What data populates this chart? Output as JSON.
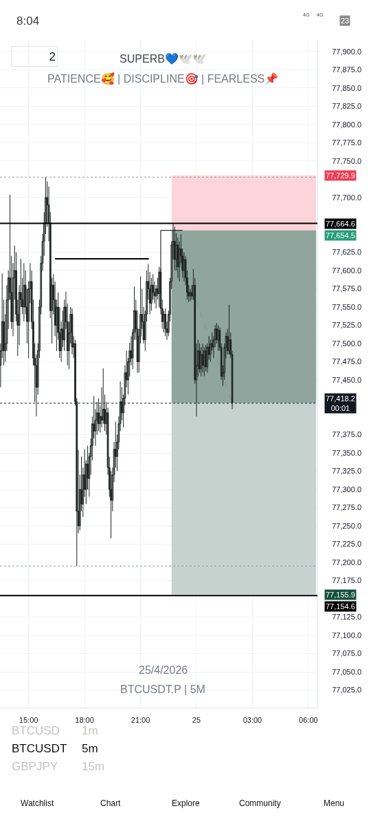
{
  "chart_data": {
    "type": "candlestick",
    "title": "SUPERB💙🕊️🕊️",
    "subtitle": "PATIENCE🥰 | DISCIPLINE🎯 | FEARLESS📌",
    "color": "#1c2320",
    "x": [
      "2026-04-24T13:30",
      "2026-04-24T13:35",
      "2026-04-24T13:40",
      "2026-04-24T13:45",
      "2026-04-24T13:50",
      "2026-04-24T13:55",
      "2026-04-24T14:00",
      "2026-04-24T14:05",
      "2026-04-24T14:10",
      "2026-04-24T14:15",
      "2026-04-24T14:20",
      "2026-04-24T14:25",
      "2026-04-24T14:30",
      "2026-04-24T14:35",
      "2026-04-24T14:40",
      "2026-04-24T14:45",
      "2026-04-24T14:50",
      "2026-04-24T14:55",
      "2026-04-24T15:00",
      "2026-04-24T15:05",
      "2026-04-24T15:10",
      "2026-04-24T15:15",
      "2026-04-24T15:20",
      "2026-04-24T15:25",
      "2026-04-24T15:30",
      "2026-04-24T15:35",
      "2026-04-24T15:40",
      "2026-04-24T15:45",
      "2026-04-24T15:50",
      "2026-04-24T15:55",
      "2026-04-24T16:00",
      "2026-04-24T16:05",
      "2026-04-24T16:10",
      "2026-04-24T16:15",
      "2026-04-24T16:20",
      "2026-04-24T16:25",
      "2026-04-24T16:30",
      "2026-04-24T16:35",
      "2026-04-24T16:40",
      "2026-04-24T16:45",
      "2026-04-24T16:50",
      "2026-04-24T16:55",
      "2026-04-24T17:00",
      "2026-04-24T17:05",
      "2026-04-24T17:10",
      "2026-04-24T17:15",
      "2026-04-24T17:20",
      "2026-04-24T17:25",
      "2026-04-24T17:30",
      "2026-04-24T17:35",
      "2026-04-24T17:40",
      "2026-04-24T17:45",
      "2026-04-24T17:50",
      "2026-04-24T17:55",
      "2026-04-24T18:00",
      "2026-04-24T18:05",
      "2026-04-24T18:10",
      "2026-04-24T18:15",
      "2026-04-24T18:20",
      "2026-04-24T18:25",
      "2026-04-24T18:30",
      "2026-04-24T18:35",
      "2026-04-24T18:40",
      "2026-04-24T18:45",
      "2026-04-24T18:50",
      "2026-04-24T18:55",
      "2026-04-24T19:00",
      "2026-04-24T19:05",
      "2026-04-24T19:10",
      "2026-04-24T19:15",
      "2026-04-24T19:20",
      "2026-04-24T19:25",
      "2026-04-24T19:30",
      "2026-04-24T19:35",
      "2026-04-24T19:40",
      "2026-04-24T19:45",
      "2026-04-24T19:50",
      "2026-04-24T19:55",
      "2026-04-24T20:00",
      "2026-04-24T20:05",
      "2026-04-24T20:10",
      "2026-04-24T20:15",
      "2026-04-24T20:20",
      "2026-04-24T20:25",
      "2026-04-24T20:30",
      "2026-04-24T20:35",
      "2026-04-24T20:40",
      "2026-04-24T20:45",
      "2026-04-24T20:50",
      "2026-04-24T20:55",
      "2026-04-24T21:00",
      "2026-04-24T21:05",
      "2026-04-24T21:10",
      "2026-04-24T21:15",
      "2026-04-24T21:20",
      "2026-04-24T21:25",
      "2026-04-24T21:30",
      "2026-04-24T21:35",
      "2026-04-24T21:40",
      "2026-04-24T21:45",
      "2026-04-24T21:50",
      "2026-04-24T21:55",
      "2026-04-24T22:00",
      "2026-04-24T22:05",
      "2026-04-24T22:10",
      "2026-04-24T22:15",
      "2026-04-24T22:20",
      "2026-04-24T22:25",
      "2026-04-24T22:30",
      "2026-04-24T22:35",
      "2026-04-24T22:40",
      "2026-04-24T22:45",
      "2026-04-24T22:50",
      "2026-04-24T22:55",
      "2026-04-24T23:00",
      "2026-04-24T23:05",
      "2026-04-24T23:10",
      "2026-04-24T23:15",
      "2026-04-24T23:20",
      "2026-04-24T23:25",
      "2026-04-24T23:30",
      "2026-04-24T23:35",
      "2026-04-24T23:40",
      "2026-04-24T23:45",
      "2026-04-24T23:50",
      "2026-04-24T23:55",
      "2026-04-25T00:00",
      "2026-04-25T00:05",
      "2026-04-25T00:10",
      "2026-04-25T00:15",
      "2026-04-25T00:20",
      "2026-04-25T00:25",
      "2026-04-25T00:30",
      "2026-04-25T00:35",
      "2026-04-25T00:40",
      "2026-04-25T00:45",
      "2026-04-25T00:50",
      "2026-04-25T00:55",
      "2026-04-25T01:00",
      "2026-04-25T01:05",
      "2026-04-25T01:10",
      "2026-04-25T01:15",
      "2026-04-25T01:20",
      "2026-04-25T01:25",
      "2026-04-25T01:30",
      "2026-04-25T01:35",
      "2026-04-25T01:40",
      "2026-04-25T01:45",
      "2026-04-25T01:50",
      "2026-04-25T01:55"
    ],
    "ohlc": [
      [
        77470,
        77500,
        77440,
        77490
      ],
      [
        77490,
        77596,
        77480,
        77530
      ],
      [
        77530,
        77560,
        77470,
        77490
      ],
      [
        77490,
        77540,
        77475,
        77500
      ],
      [
        77500,
        77580,
        77490,
        77560
      ],
      [
        77560,
        77600,
        77520,
        77590
      ],
      [
        77590,
        77704,
        77560,
        77570
      ],
      [
        77570,
        77620,
        77520,
        77530
      ],
      [
        77530,
        77610,
        77510,
        77590
      ],
      [
        77590,
        77634,
        77560,
        77600
      ],
      [
        77600,
        77625,
        77530,
        77540
      ],
      [
        77540,
        77560,
        77483,
        77525
      ],
      [
        77525,
        77580,
        77498,
        77570
      ],
      [
        77570,
        77616,
        77550,
        77560
      ],
      [
        77560,
        77590,
        77540,
        77550
      ],
      [
        77550,
        77610,
        77530,
        77580
      ],
      [
        77580,
        77600,
        77540,
        77550
      ],
      [
        77550,
        77575,
        77500,
        77530
      ],
      [
        77530,
        77585,
        77480,
        77575
      ],
      [
        77575,
        77610,
        77555,
        77585
      ],
      [
        77585,
        77600,
        77520,
        77530
      ],
      [
        77530,
        77560,
        77470,
        77480
      ],
      [
        77480,
        77500,
        77420,
        77470
      ],
      [
        77470,
        77485,
        77400,
        77440
      ],
      [
        77440,
        77500,
        77430,
        77490
      ],
      [
        77490,
        77560,
        77480,
        77550
      ],
      [
        77550,
        77620,
        77540,
        77610
      ],
      [
        77610,
        77650,
        77600,
        77640
      ],
      [
        77640,
        77680,
        77620,
        77665
      ],
      [
        77665,
        77728,
        77650,
        77700
      ],
      [
        77700,
        77722,
        77660,
        77690
      ],
      [
        77690,
        77715,
        77640,
        77665
      ],
      [
        77665,
        77680,
        77535,
        77545
      ],
      [
        77545,
        77590,
        77500,
        77580
      ],
      [
        77580,
        77595,
        77540,
        77560
      ],
      [
        77560,
        77585,
        77510,
        77525
      ],
      [
        77525,
        77560,
        77490,
        77550
      ],
      [
        77550,
        77570,
        77505,
        77515
      ],
      [
        77515,
        77550,
        77480,
        77490
      ],
      [
        77490,
        77530,
        77475,
        77520
      ],
      [
        77520,
        77545,
        77495,
        77505
      ],
      [
        77505,
        77560,
        77490,
        77550
      ],
      [
        77550,
        77571,
        77520,
        77530
      ],
      [
        77530,
        77555,
        77470,
        77490
      ],
      [
        77490,
        77530,
        77465,
        77515
      ],
      [
        77515,
        77550,
        77500,
        77540
      ],
      [
        77540,
        77548,
        77485,
        77495
      ],
      [
        77495,
        77510,
        77480,
        77500
      ],
      [
        77500,
        77505,
        77415,
        77420
      ],
      [
        77420,
        77425,
        77195,
        77270
      ],
      [
        77270,
        77354,
        77240,
        77250
      ],
      [
        77250,
        77320,
        77244,
        77300
      ],
      [
        77300,
        77345,
        77270,
        77280
      ],
      [
        77280,
        77330,
        77262,
        77320
      ],
      [
        77320,
        77355,
        77290,
        77300
      ],
      [
        77300,
        77340,
        77280,
        77335
      ],
      [
        77335,
        77360,
        77300,
        77315
      ],
      [
        77315,
        77350,
        77290,
        77345
      ],
      [
        77345,
        77370,
        77320,
        77360
      ],
      [
        77360,
        77400,
        77340,
        77390
      ],
      [
        77390,
        77428,
        77370,
        77380
      ],
      [
        77380,
        77410,
        77360,
        77395
      ],
      [
        77395,
        77420,
        77375,
        77405
      ],
      [
        77405,
        77425,
        77380,
        77390
      ],
      [
        77390,
        77415,
        77378,
        77400
      ],
      [
        77400,
        77440,
        77385,
        77395
      ],
      [
        77395,
        77466,
        77390,
        77410
      ],
      [
        77410,
        77430,
        77380,
        77390
      ],
      [
        77390,
        77420,
        77375,
        77405
      ],
      [
        77405,
        77412,
        77320,
        77330
      ],
      [
        77330,
        77345,
        77290,
        77300
      ],
      [
        77300,
        77325,
        77233,
        77285
      ],
      [
        77285,
        77330,
        77270,
        77320
      ],
      [
        77320,
        77365,
        77310,
        77355
      ],
      [
        77355,
        77393,
        77330,
        77345
      ],
      [
        77345,
        77375,
        77325,
        77365
      ],
      [
        77365,
        77400,
        77355,
        77390
      ],
      [
        77390,
        77448,
        77380,
        77420
      ],
      [
        77420,
        77440,
        77395,
        77405
      ],
      [
        77405,
        77430,
        77385,
        77425
      ],
      [
        77425,
        77470,
        77415,
        77460
      ],
      [
        77460,
        77490,
        77440,
        77450
      ],
      [
        77450,
        77480,
        77430,
        77475
      ],
      [
        77475,
        77501,
        77455,
        77490
      ],
      [
        77490,
        77510,
        77470,
        77480
      ],
      [
        77480,
        77520,
        77465,
        77515
      ],
      [
        77515,
        77578,
        77505,
        77545
      ],
      [
        77545,
        77560,
        77505,
        77520
      ],
      [
        77520,
        77545,
        77460,
        77475
      ],
      [
        77475,
        77520,
        77460,
        77510
      ],
      [
        77510,
        77592,
        77500,
        77540
      ],
      [
        77540,
        77575,
        77520,
        77530
      ],
      [
        77530,
        77550,
        77500,
        77505
      ],
      [
        77505,
        77545,
        77490,
        77540
      ],
      [
        77540,
        77600,
        77530,
        77585
      ],
      [
        77585,
        77609,
        77560,
        77575
      ],
      [
        77575,
        77598,
        77540,
        77555
      ],
      [
        77555,
        77590,
        77545,
        77580
      ],
      [
        77580,
        77595,
        77560,
        77570
      ],
      [
        77570,
        77585,
        77555,
        77565
      ],
      [
        77565,
        77580,
        77548,
        77575
      ],
      [
        77575,
        77590,
        77560,
        77568
      ],
      [
        77568,
        77605,
        77550,
        77598
      ],
      [
        77598,
        77603,
        77540,
        77548
      ],
      [
        77548,
        77560,
        77520,
        77530
      ],
      [
        77530,
        77545,
        77515,
        77540
      ],
      [
        77540,
        77548,
        77510,
        77520
      ],
      [
        77520,
        77530,
        77505,
        77515
      ],
      [
        77515,
        77545,
        77510,
        77540
      ],
      [
        77540,
        77590,
        77530,
        77585
      ],
      [
        77585,
        77640,
        77575,
        77635
      ],
      [
        77635,
        77665,
        77615,
        77640
      ],
      [
        77640,
        77660,
        77600,
        77615
      ],
      [
        77615,
        77651,
        77600,
        77635
      ],
      [
        77635,
        77645,
        77590,
        77605
      ],
      [
        77605,
        77640,
        77585,
        77630
      ],
      [
        77630,
        77650,
        77610,
        77620
      ],
      [
        77620,
        77630,
        77590,
        77600
      ],
      [
        77600,
        77625,
        77585,
        77615
      ],
      [
        77615,
        77620,
        77580,
        77590
      ],
      [
        77590,
        77600,
        77560,
        77570
      ],
      [
        77570,
        77580,
        77557,
        77565
      ],
      [
        77565,
        77575,
        77558,
        77570
      ],
      [
        77570,
        77580,
        77560,
        77565
      ],
      [
        77565,
        77602,
        77560,
        77580
      ],
      [
        77580,
        77590,
        77445,
        77450
      ],
      [
        77450,
        77500,
        77400,
        77470
      ],
      [
        77470,
        77505,
        77455,
        77490
      ],
      [
        77490,
        77500,
        77460,
        77465
      ],
      [
        77465,
        77495,
        77455,
        77485
      ],
      [
        77485,
        77500,
        77460,
        77470
      ],
      [
        77470,
        77495,
        77455,
        77490
      ],
      [
        77490,
        77498,
        77462,
        77468
      ],
      [
        77468,
        77500,
        77460,
        77495
      ],
      [
        77495,
        77510,
        77478,
        77485
      ],
      [
        77485,
        77505,
        77475,
        77500
      ],
      [
        77500,
        77515,
        77490,
        77495
      ],
      [
        77495,
        77510,
        77480,
        77505
      ],
      [
        77505,
        77525,
        77495,
        77520
      ],
      [
        77520,
        77528,
        77500,
        77505
      ],
      [
        77505,
        77525,
        77490,
        77518
      ],
      [
        77518,
        77522,
        77490,
        77495
      ],
      [
        77495,
        77500,
        77450,
        77455
      ],
      [
        77455,
        77470,
        77442,
        77460
      ],
      [
        77460,
        77500,
        77450,
        77495
      ],
      [
        77495,
        77515,
        77480,
        77510
      ],
      [
        77510,
        77520,
        77485,
        77490
      ],
      [
        77490,
        77553,
        77485,
        77505
      ],
      [
        77505,
        77515,
        77480,
        77485
      ],
      [
        77485,
        77490,
        77410,
        77418.2
      ]
    ],
    "series": [
      {
        "type": "line",
        "x": [
          "2026-04-24T22:40",
          "2026-04-25T06:25"
        ],
        "values": [
          77729.9,
          77729.9
        ],
        "lower": [
          77654.5,
          77654.5
        ],
        "upper": [
          77729.9,
          77729.9
        ],
        "color": "#fcd5da",
        "value_labels": [
          null,
          "77,729.9"
        ]
      },
      {
        "type": "line",
        "x": [
          "2026-04-24T22:40",
          "2026-04-25T06:25"
        ],
        "values": [
          77654.5,
          77654.5
        ],
        "lower": [
          77418.2,
          77418.2
        ],
        "upper": [
          77654.5,
          77654.5
        ],
        "color": "#8fa59e",
        "value_labels": [
          null,
          "77,654.5"
        ]
      },
      {
        "type": "line",
        "x": [
          "2026-04-24T22:40",
          "2026-04-25T06:25"
        ],
        "values": [
          77418.2,
          77418.2
        ],
        "lower": [
          77155.9,
          77155.9
        ],
        "upper": [
          77418.2,
          77418.2
        ],
        "color": "#c5d2ce"
      },
      {
        "type": "line",
        "x": [
          "2026-04-24T16:25",
          "2026-04-24T21:27"
        ],
        "values": [
          77616,
          77616
        ],
        "color": "#000000"
      },
      {
        "type": "line",
        "x": [
          "2026-04-24T22:05",
          "2026-04-24T22:05",
          "2026-04-24T23:15"
        ],
        "values": [
          77596,
          77655,
          77655
        ],
        "color": "#000000"
      },
      {
        "type": "line",
        "x": [
          "2026-04-24T22:40",
          "2026-04-25T01:55"
        ],
        "values": [
          77655,
          77418
        ],
        "color": "#7f9c92",
        "line_style": "dashed"
      }
    ],
    "ref_lines": [
      {
        "axis": "y",
        "value": 77664.6,
        "label": "77,664.6",
        "color": "#000000",
        "line_style": "solid"
      },
      {
        "axis": "y",
        "value": 77154.6,
        "label": "77,154.6",
        "color": "#000000",
        "line_style": "solid"
      },
      {
        "axis": "y",
        "value": 77418.2,
        "label": "77,418.2\n00:01",
        "color": "#131722",
        "line_style": "dotted"
      },
      {
        "axis": "y",
        "value": 77728,
        "color": "#9598a1",
        "line_style": "dotted"
      },
      {
        "axis": "y",
        "value": 77195,
        "color": "#9598a1",
        "line_style": "dotted"
      }
    ],
    "xlim": [
      "2026-04-24T13:28",
      "2026-04-25T06:29"
    ],
    "xticks": [
      {
        "value": "2026-04-24T15:00",
        "label": "15:00"
      },
      {
        "value": "2026-04-24T18:00",
        "label": "18:00"
      },
      {
        "value": "2026-04-24T21:00",
        "label": "21:00"
      },
      {
        "value": "2026-04-25T00:00",
        "label": "25"
      },
      {
        "value": "2026-04-25T03:00",
        "label": "03:00"
      },
      {
        "value": "2026-04-25T06:00",
        "label": "06:00"
      }
    ],
    "ylim": [
      77001,
      77916
    ],
    "yticks": [
      {
        "value": 77025,
        "label": "77,025.0"
      },
      {
        "value": 77050,
        "label": "77,050.0"
      },
      {
        "value": 77075,
        "label": "77,075.0"
      },
      {
        "value": 77100,
        "label": "77,100.0"
      },
      {
        "value": 77125,
        "label": "77,125.0"
      },
      {
        "value": 77175,
        "label": "77,175.0"
      },
      {
        "value": 77200,
        "label": "77,200.0"
      },
      {
        "value": 77225,
        "label": "77,225.0"
      },
      {
        "value": 77250,
        "label": "77,250.0"
      },
      {
        "value": 77275,
        "label": "77,275.0"
      },
      {
        "value": 77300,
        "label": "77,300.0"
      },
      {
        "value": 77325,
        "label": "77,325.0"
      },
      {
        "value": 77350,
        "label": "77,350.0"
      },
      {
        "value": 77375,
        "label": "77,375.0"
      },
      {
        "value": 77450,
        "label": "77,450.0"
      },
      {
        "value": 77475,
        "label": "77,475.0"
      },
      {
        "value": 77500,
        "label": "77,500.0"
      },
      {
        "value": 77525,
        "label": "77,525.0"
      },
      {
        "value": 77550,
        "label": "77,550.0"
      },
      {
        "value": 77575,
        "label": "77,575.0"
      },
      {
        "value": 77600,
        "label": "77,600.0"
      },
      {
        "value": 77625,
        "label": "77,625.0"
      },
      {
        "value": 77700,
        "label": "77,700.0"
      },
      {
        "value": 77750,
        "label": "77,750.0"
      },
      {
        "value": 77775,
        "label": "77,775.0"
      },
      {
        "value": 77800,
        "label": "77,800.0"
      },
      {
        "value": 77825,
        "label": "77,825.0"
      },
      {
        "value": 77850,
        "label": "77,850.0"
      },
      {
        "value": 77875,
        "label": "77,875.0"
      },
      {
        "value": 77900,
        "label": "77,900.0"
      }
    ],
    "grid": true,
    "annotations": [
      "8:04",
      "4G",
      "4G",
      "23",
      "2",
      "25/4/2026",
      "BTCUSDT.P | 5M",
      "BTCUSD",
      "1m",
      "BTCUSDT",
      "5m",
      "GBPJPY",
      "15m",
      "Watchlist",
      "Chart",
      "Explore",
      "Community",
      "Menu",
      {
        "text": "77,155.9",
        "x": "2026-04-25T06:25",
        "y": 77155.9
      }
    ]
  }
}
